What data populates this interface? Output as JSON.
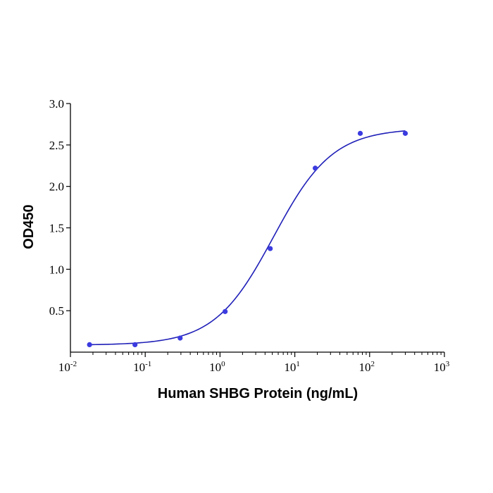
{
  "chart_data": {
    "type": "scatter",
    "title": "",
    "xlabel": "Human SHBG Protein (ng/mL)",
    "ylabel": "OD450",
    "x_scale": "log",
    "xlim": [
      0.01,
      1000
    ],
    "ylim": [
      0,
      3.0
    ],
    "x_ticks": [
      {
        "base": "10",
        "exp": "-2",
        "value": 0.01
      },
      {
        "base": "10",
        "exp": "-1",
        "value": 0.1
      },
      {
        "base": "10",
        "exp": "0",
        "value": 1
      },
      {
        "base": "10",
        "exp": "1",
        "value": 10
      },
      {
        "base": "10",
        "exp": "2",
        "value": 100
      },
      {
        "base": "10",
        "exp": "3",
        "value": 1000
      }
    ],
    "y_ticks": [
      "0.5",
      "1.0",
      "1.5",
      "2.0",
      "2.5",
      "3.0"
    ],
    "grid": false,
    "colors": {
      "series": "#1f1fb8",
      "points": "#3b3be0",
      "axis": "#000000"
    },
    "series": [
      {
        "points": [
          {
            "x": 0.018,
            "y": 0.09
          },
          {
            "x": 0.073,
            "y": 0.09
          },
          {
            "x": 0.293,
            "y": 0.17
          },
          {
            "x": 1.17,
            "y": 0.49
          },
          {
            "x": 4.69,
            "y": 1.25
          },
          {
            "x": 18.75,
            "y": 2.22
          },
          {
            "x": 75,
            "y": 2.64
          },
          {
            "x": 300,
            "y": 2.64
          }
        ],
        "fit": {
          "model": "4PL",
          "bottom": 0.085,
          "top": 2.7,
          "ec50": 5.2,
          "hill": 1.1,
          "x_range": [
            0.018,
            300
          ]
        }
      }
    ]
  }
}
